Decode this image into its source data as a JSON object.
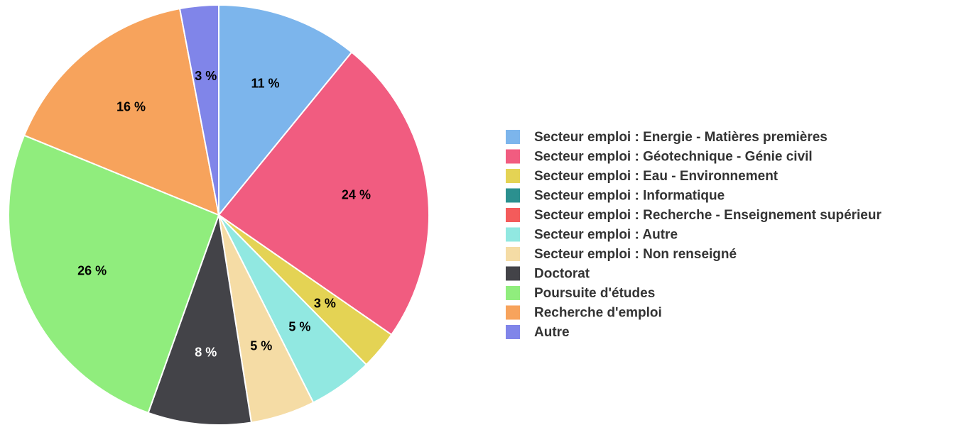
{
  "chart_data": {
    "type": "pie",
    "categories": [
      "Secteur emploi : Energie - Matières premières",
      "Secteur emploi : Géotechnique - Génie civil",
      "Secteur emploi : Eau - Environnement",
      "Secteur emploi : Informatique",
      "Secteur emploi : Recherche - Enseignement supérieur",
      "Secteur emploi : Autre",
      "Secteur emploi : Non renseigné",
      "Doctorat",
      "Poursuite d'études",
      "Recherche d'emploi",
      "Autre"
    ],
    "values": [
      11,
      24,
      3,
      0,
      0,
      5,
      5,
      8,
      26,
      16,
      3
    ],
    "value_labels": [
      "11 %",
      "24 %",
      "3 %",
      null,
      null,
      "5 %",
      "5 %",
      "8 %",
      "26 %",
      "16 %",
      "3 %"
    ],
    "colors": [
      "#7cb5ec",
      "#f15c80",
      "#e4d354",
      "#2b908f",
      "#f45b5b",
      "#91e8e1",
      "#f5dca5",
      "#434348",
      "#90ed7d",
      "#f7a35c",
      "#8085e9"
    ],
    "legend": "right"
  }
}
